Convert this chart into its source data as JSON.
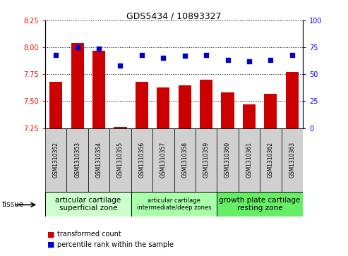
{
  "title": "GDS5434 / 10893327",
  "samples": [
    "GSM1310352",
    "GSM1310353",
    "GSM1310354",
    "GSM1310355",
    "GSM1310356",
    "GSM1310357",
    "GSM1310358",
    "GSM1310359",
    "GSM1310360",
    "GSM1310361",
    "GSM1310362",
    "GSM1310363"
  ],
  "bar_values": [
    7.68,
    8.04,
    7.97,
    7.26,
    7.68,
    7.63,
    7.65,
    7.7,
    7.58,
    7.47,
    7.57,
    7.77
  ],
  "scatter_values": [
    68,
    75,
    74,
    58,
    68,
    65,
    67,
    68,
    63,
    62,
    63,
    68
  ],
  "ylim_left": [
    7.25,
    8.25
  ],
  "ylim_right": [
    0,
    100
  ],
  "yticks_left": [
    7.25,
    7.5,
    7.75,
    8.0,
    8.25
  ],
  "yticks_right": [
    0,
    25,
    50,
    75,
    100
  ],
  "bar_color": "#cc0000",
  "scatter_color": "#0000cc",
  "bar_bottom": 7.25,
  "groups": [
    {
      "label": "articular cartilage\nsuperficial zone",
      "indices": [
        0,
        1,
        2,
        3
      ],
      "color": "#ccffcc",
      "fontsize": 7.5
    },
    {
      "label": "articular cartilage\nintermediate/deep zones",
      "indices": [
        4,
        5,
        6,
        7
      ],
      "color": "#aaffaa",
      "fontsize": 6.0
    },
    {
      "label": "growth plate cartilage\nresting zone",
      "indices": [
        8,
        9,
        10,
        11
      ],
      "color": "#66ee66",
      "fontsize": 7.5
    }
  ],
  "tissue_label": "tissue",
  "legend_bar_label": "transformed count",
  "legend_scatter_label": "percentile rank within the sample",
  "grid_color": "black",
  "ticklabel_bg": "#d0d0d0",
  "plot_bg": "white"
}
